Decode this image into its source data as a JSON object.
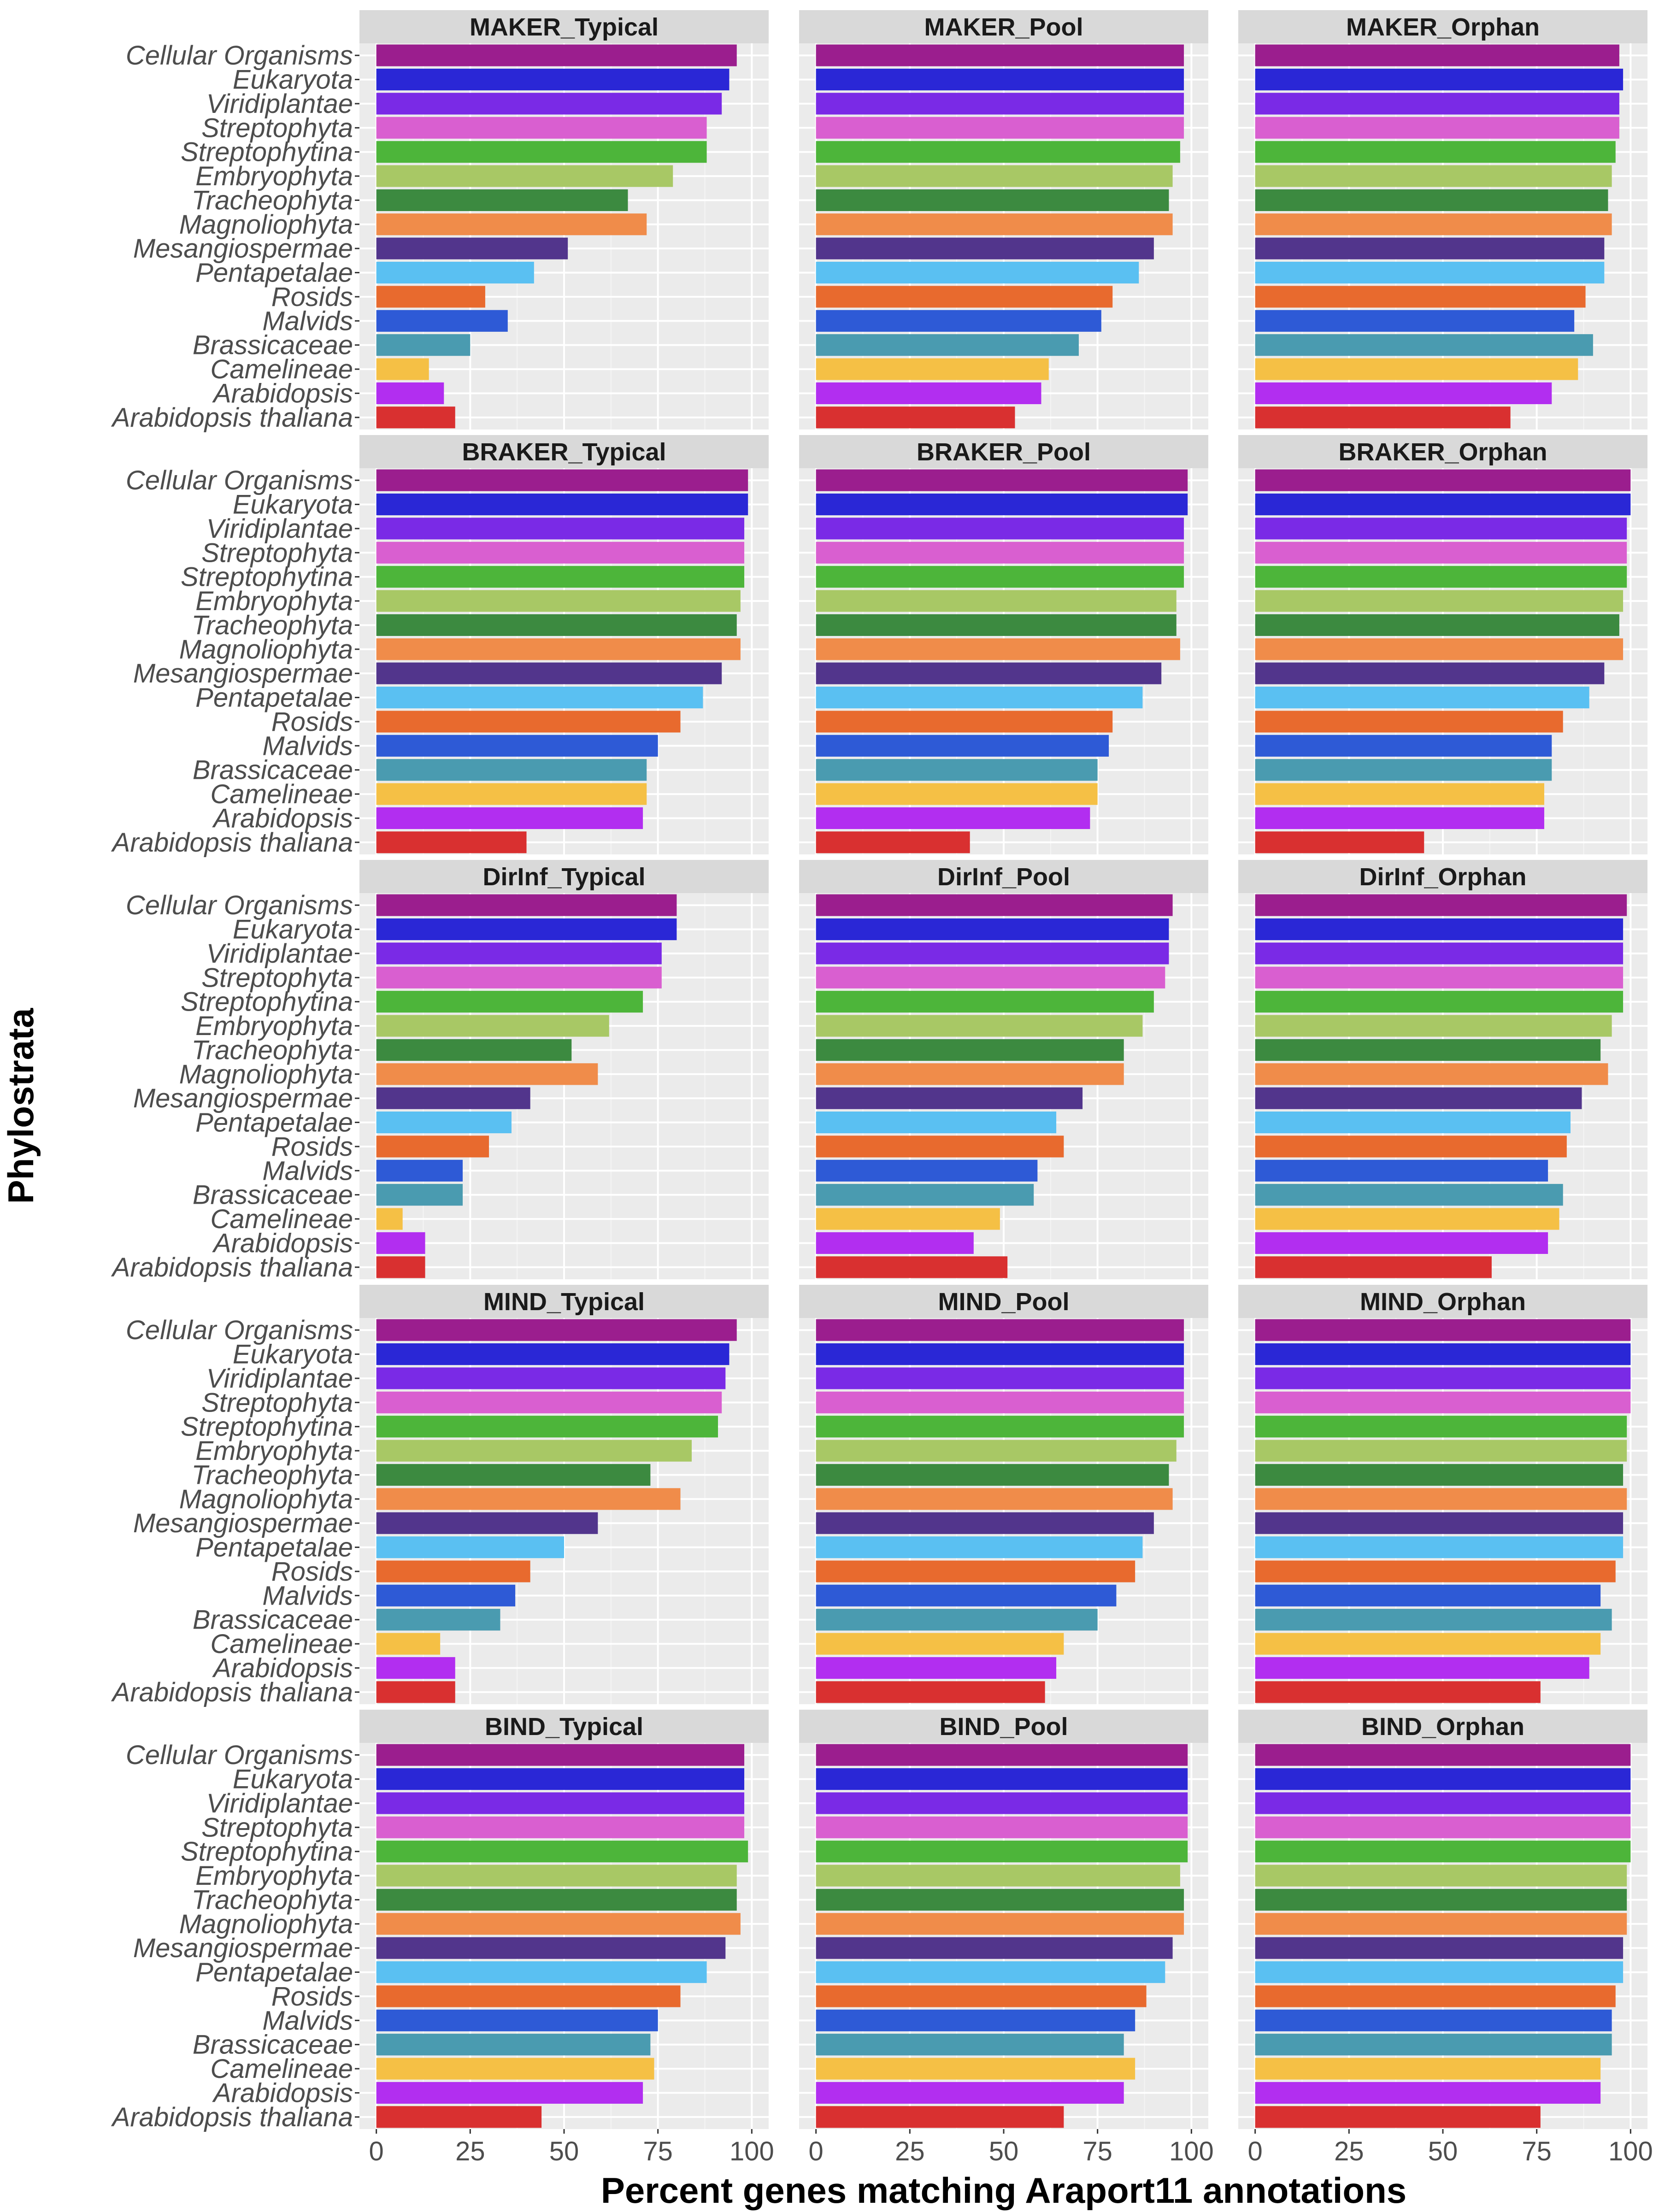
{
  "chart_data": {
    "type": "bar",
    "orientation": "horizontal",
    "xlabel": "Percent genes matching Araport11 annotations",
    "ylabel": "Phylostrata",
    "xlim": [
      0,
      100
    ],
    "xticks": [
      0,
      25,
      50,
      75,
      100
    ],
    "grid": true,
    "legend": "none",
    "categories": [
      "Cellular Organisms",
      "Eukaryota",
      "Viridiplantae",
      "Streptophyta",
      "Streptophytina",
      "Embryophyta",
      "Tracheophyta",
      "Magnoliophyta",
      "Mesangiospermae",
      "Pentapetalae",
      "Rosids",
      "Malvids",
      "Brassicaceae",
      "Camelineae",
      "Arabidopsis",
      "Arabidopsis thaliana"
    ],
    "category_colors": [
      "#9b1e8e",
      "#2a27d6",
      "#7a2ae6",
      "#d95fd0",
      "#4db53a",
      "#a8c865",
      "#3c8a40",
      "#f08c4a",
      "#52358c",
      "#5ac0f2",
      "#e86a2e",
      "#2e5ad6",
      "#4a9bb0",
      "#f5c045",
      "#b22ef0",
      "#d93030"
    ],
    "rows": [
      "MAKER",
      "BRAKER",
      "DirInf",
      "MIND",
      "BIND"
    ],
    "columns": [
      "Typical",
      "Pool",
      "Orphan"
    ],
    "panels": [
      {
        "title": "MAKER_Typical",
        "values": [
          96,
          94,
          92,
          88,
          88,
          79,
          67,
          72,
          51,
          42,
          29,
          35,
          25,
          14,
          18,
          21
        ]
      },
      {
        "title": "MAKER_Pool",
        "values": [
          98,
          98,
          98,
          98,
          97,
          95,
          94,
          95,
          90,
          86,
          79,
          76,
          70,
          62,
          60,
          53
        ]
      },
      {
        "title": "MAKER_Orphan",
        "values": [
          97,
          98,
          97,
          97,
          96,
          95,
          94,
          95,
          93,
          93,
          88,
          85,
          90,
          86,
          79,
          68
        ]
      },
      {
        "title": "BRAKER_Typical",
        "values": [
          99,
          99,
          98,
          98,
          98,
          97,
          96,
          97,
          92,
          87,
          81,
          75,
          72,
          72,
          71,
          40
        ]
      },
      {
        "title": "BRAKER_Pool",
        "values": [
          99,
          99,
          98,
          98,
          98,
          96,
          96,
          97,
          92,
          87,
          79,
          78,
          75,
          75,
          73,
          41
        ]
      },
      {
        "title": "BRAKER_Orphan",
        "values": [
          100,
          100,
          99,
          99,
          99,
          98,
          97,
          98,
          93,
          89,
          82,
          79,
          79,
          77,
          77,
          45
        ]
      },
      {
        "title": "DirInf_Typical",
        "values": [
          80,
          80,
          76,
          76,
          71,
          62,
          52,
          59,
          41,
          36,
          30,
          23,
          23,
          7,
          13,
          13
        ]
      },
      {
        "title": "DirInf_Pool",
        "values": [
          95,
          94,
          94,
          93,
          90,
          87,
          82,
          82,
          71,
          64,
          66,
          59,
          58,
          49,
          42,
          51
        ]
      },
      {
        "title": "DirInf_Orphan",
        "values": [
          99,
          98,
          98,
          98,
          98,
          95,
          92,
          94,
          87,
          84,
          83,
          78,
          82,
          81,
          78,
          63
        ]
      },
      {
        "title": "MIND_Typical",
        "values": [
          96,
          94,
          93,
          92,
          91,
          84,
          73,
          81,
          59,
          50,
          41,
          37,
          33,
          17,
          21,
          21
        ]
      },
      {
        "title": "MIND_Pool",
        "values": [
          98,
          98,
          98,
          98,
          98,
          96,
          94,
          95,
          90,
          87,
          85,
          80,
          75,
          66,
          64,
          61
        ]
      },
      {
        "title": "MIND_Orphan",
        "values": [
          100,
          100,
          100,
          100,
          99,
          99,
          98,
          99,
          98,
          98,
          96,
          92,
          95,
          92,
          89,
          76
        ]
      },
      {
        "title": "BIND_Typical",
        "values": [
          98,
          98,
          98,
          98,
          99,
          96,
          96,
          97,
          93,
          88,
          81,
          75,
          73,
          74,
          71,
          44
        ]
      },
      {
        "title": "BIND_Pool",
        "values": [
          99,
          99,
          99,
          99,
          99,
          97,
          98,
          98,
          95,
          93,
          88,
          85,
          82,
          85,
          82,
          66
        ]
      },
      {
        "title": "BIND_Orphan",
        "values": [
          100,
          100,
          100,
          100,
          100,
          99,
          99,
          99,
          98,
          98,
          96,
          95,
          95,
          92,
          92,
          76
        ]
      }
    ]
  }
}
